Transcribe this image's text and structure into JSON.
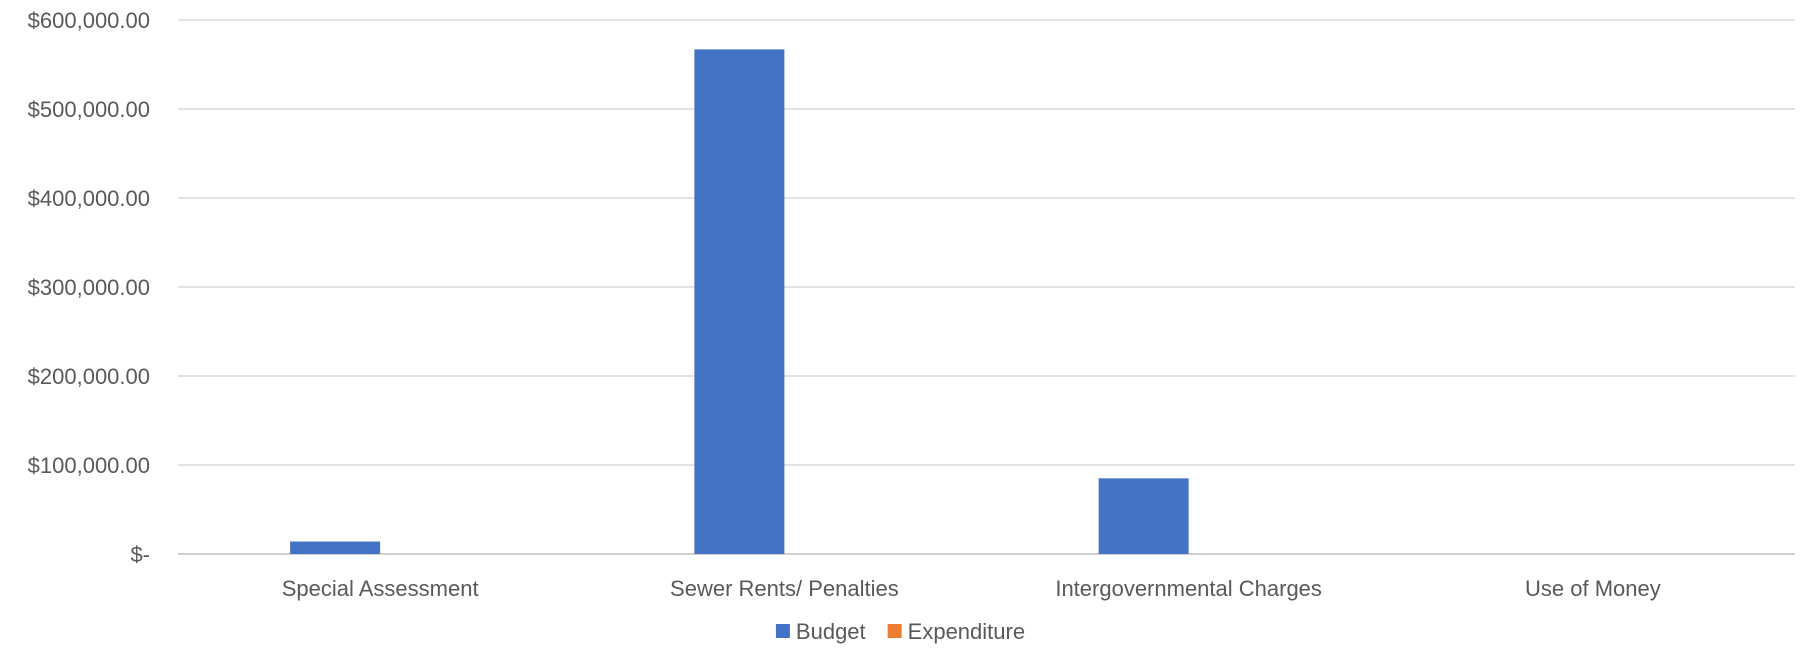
{
  "chart_data": {
    "type": "bar",
    "title": "",
    "xlabel": "",
    "ylabel": "",
    "categories": [
      "Special Assessment",
      "Sewer Rents/ Penalties",
      "Intergovernmental Charges",
      "Use of Money"
    ],
    "series": [
      {
        "name": "Budget",
        "color": "#4472C4",
        "values": [
          14000,
          567000,
          85000,
          0
        ]
      },
      {
        "name": "Expenditure",
        "color": "#ED7D31",
        "values": [
          0,
          0,
          0,
          0
        ]
      }
    ],
    "ylim": [
      0,
      600000
    ],
    "yticks": [
      0,
      100000,
      200000,
      300000,
      400000,
      500000,
      600000
    ],
    "ytick_labels": [
      "$-",
      "$100,000.00",
      "$200,000.00",
      "$300,000.00",
      "$400,000.00",
      "$500,000.00",
      "$600,000.00"
    ],
    "grid": true,
    "legend_position": "bottom"
  }
}
